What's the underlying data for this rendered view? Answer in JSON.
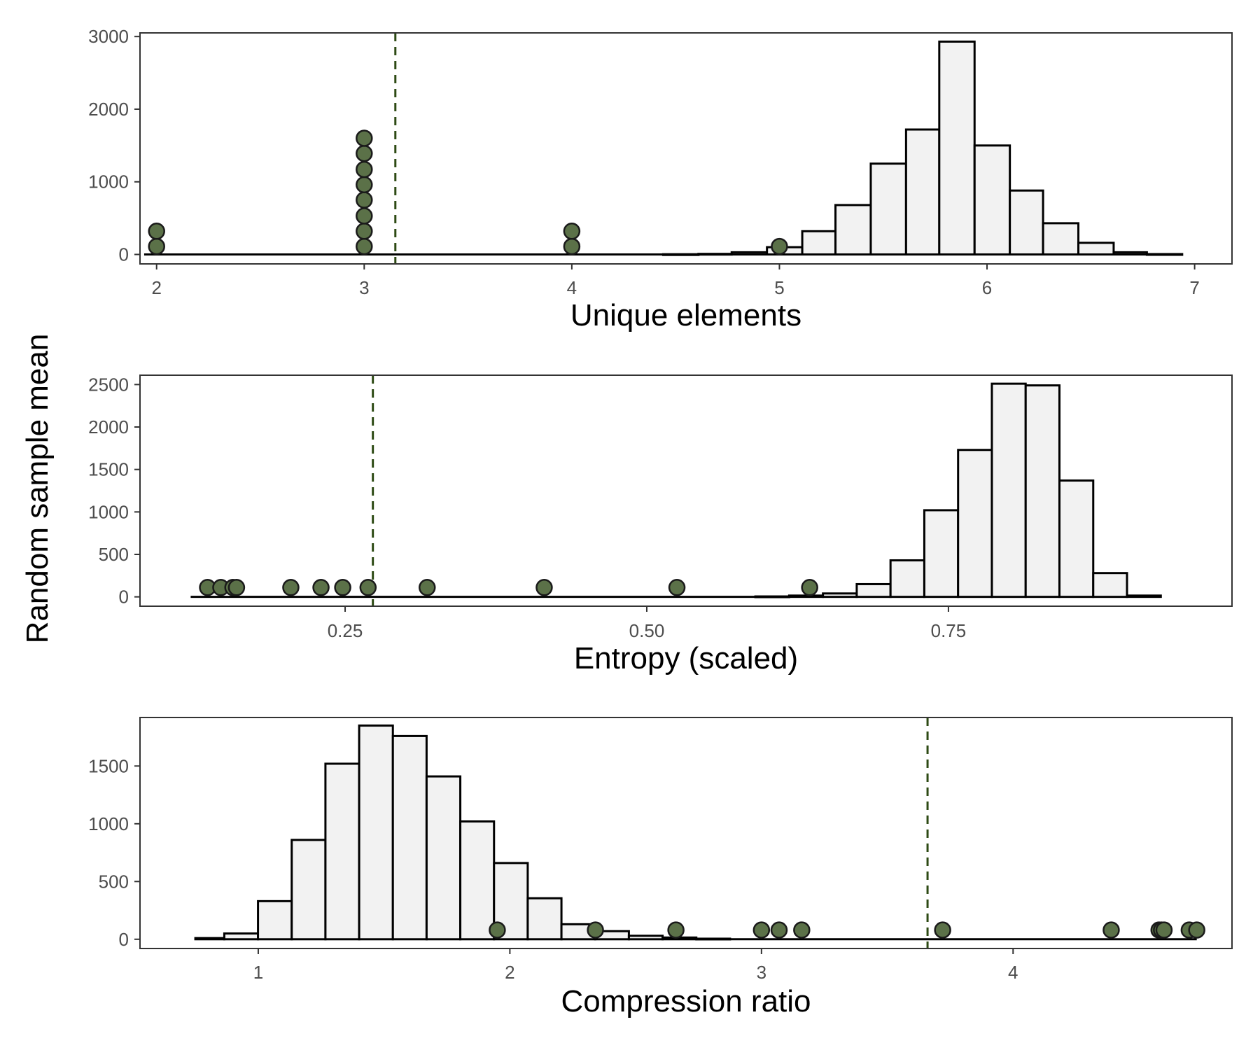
{
  "figure": {
    "ylabel": "Random sample mean"
  },
  "colors": {
    "bar_fill": "#f2f2f2",
    "bar_stroke": "#000000",
    "point_fill": "#5b7148",
    "point_stroke": "#1a1a1a",
    "vline": "#2d4a14",
    "panel_border": "#333333"
  },
  "chart_data": [
    {
      "type": "histogram",
      "xlabel": "Unique elements",
      "xticks": [
        2,
        3,
        4,
        5,
        6,
        7
      ],
      "xtick_labels": [
        "2",
        "3",
        "4",
        "5",
        "6",
        "7"
      ],
      "yticks": [
        0,
        1000,
        2000,
        3000
      ],
      "ytick_labels": [
        "0",
        "1000",
        "2000",
        "3000"
      ],
      "xlim": [
        1.92,
        7.18
      ],
      "ylim": [
        -130,
        3050
      ],
      "bins": [
        [
          1.94,
          4.44,
          0
        ],
        [
          4.44,
          4.61,
          3
        ],
        [
          4.61,
          4.77,
          8
        ],
        [
          4.77,
          4.94,
          30
        ],
        [
          4.94,
          5.11,
          100
        ],
        [
          5.11,
          5.27,
          320
        ],
        [
          5.27,
          5.44,
          680
        ],
        [
          5.44,
          5.61,
          1250
        ],
        [
          5.61,
          5.77,
          1720
        ],
        [
          5.77,
          5.94,
          2930
        ],
        [
          5.94,
          6.11,
          1500
        ],
        [
          6.11,
          6.27,
          880
        ],
        [
          6.27,
          6.44,
          430
        ],
        [
          6.44,
          6.61,
          160
        ],
        [
          6.61,
          6.77,
          30
        ],
        [
          6.77,
          6.94,
          5
        ]
      ],
      "points": [
        [
          2,
          110
        ],
        [
          2,
          320
        ],
        [
          3,
          110
        ],
        [
          3,
          320
        ],
        [
          3,
          530
        ],
        [
          3,
          750
        ],
        [
          3,
          960
        ],
        [
          3,
          1170
        ],
        [
          3,
          1390
        ],
        [
          3,
          1600
        ],
        [
          4,
          110
        ],
        [
          4,
          320
        ],
        [
          5,
          110
        ]
      ],
      "vline": 3.15
    },
    {
      "type": "histogram",
      "xlabel": "Entropy (scaled)",
      "xticks": [
        0.25,
        0.5,
        0.75
      ],
      "xtick_labels": [
        "0.25",
        "0.50",
        "0.75"
      ],
      "yticks": [
        0,
        500,
        1000,
        1500,
        2000,
        2500
      ],
      "ytick_labels": [
        "0",
        "500",
        "1000",
        "1500",
        "2000",
        "2500"
      ],
      "xlim": [
        0.08,
        0.985
      ],
      "ylim": [
        -110,
        2610
      ],
      "bins": [
        [
          0.122,
          0.59,
          0
        ],
        [
          0.59,
          0.618,
          5
        ],
        [
          0.618,
          0.646,
          15
        ],
        [
          0.646,
          0.674,
          40
        ],
        [
          0.674,
          0.702,
          150
        ],
        [
          0.702,
          0.73,
          430
        ],
        [
          0.73,
          0.758,
          1020
        ],
        [
          0.758,
          0.786,
          1730
        ],
        [
          0.786,
          0.814,
          2510
        ],
        [
          0.814,
          0.842,
          2490
        ],
        [
          0.842,
          0.87,
          1370
        ],
        [
          0.87,
          0.898,
          280
        ],
        [
          0.898,
          0.926,
          15
        ]
      ],
      "points": [
        [
          0.136,
          110
        ],
        [
          0.147,
          110
        ],
        [
          0.157,
          110
        ],
        [
          0.16,
          110
        ],
        [
          0.205,
          110
        ],
        [
          0.23,
          110
        ],
        [
          0.248,
          110
        ],
        [
          0.269,
          110
        ],
        [
          0.318,
          110
        ],
        [
          0.415,
          110
        ],
        [
          0.525,
          110
        ],
        [
          0.635,
          110
        ]
      ],
      "vline": 0.273
    },
    {
      "type": "histogram",
      "xlabel": "Compression ratio",
      "xticks": [
        1,
        2,
        3,
        4
      ],
      "xtick_labels": [
        "1",
        "2",
        "3",
        "4"
      ],
      "yticks": [
        0,
        500,
        1000,
        1500
      ],
      "ytick_labels": [
        "0",
        "500",
        "1000",
        "1500"
      ],
      "xlim": [
        0.53,
        4.87
      ],
      "ylim": [
        -80,
        1920
      ],
      "bins": [
        [
          0.75,
          0.865,
          10
        ],
        [
          0.865,
          0.999,
          50
        ],
        [
          0.999,
          1.133,
          330
        ],
        [
          1.133,
          1.267,
          860
        ],
        [
          1.267,
          1.401,
          1520
        ],
        [
          1.401,
          1.535,
          1850
        ],
        [
          1.535,
          1.669,
          1760
        ],
        [
          1.669,
          1.803,
          1410
        ],
        [
          1.803,
          1.937,
          1020
        ],
        [
          1.937,
          2.071,
          660
        ],
        [
          2.071,
          2.205,
          355
        ],
        [
          2.205,
          2.339,
          130
        ],
        [
          2.339,
          2.473,
          70
        ],
        [
          2.473,
          2.607,
          30
        ],
        [
          2.607,
          2.741,
          15
        ],
        [
          2.741,
          2.875,
          5
        ],
        [
          2.875,
          4.73,
          0
        ]
      ],
      "points": [
        [
          1.95,
          80
        ],
        [
          2.34,
          80
        ],
        [
          2.66,
          80
        ],
        [
          3.0,
          80
        ],
        [
          3.07,
          80
        ],
        [
          3.16,
          80
        ],
        [
          3.72,
          80
        ],
        [
          4.39,
          80
        ],
        [
          4.58,
          80
        ],
        [
          4.59,
          80
        ],
        [
          4.6,
          80
        ],
        [
          4.7,
          80
        ],
        [
          4.73,
          80
        ]
      ],
      "vline": 3.66
    }
  ]
}
